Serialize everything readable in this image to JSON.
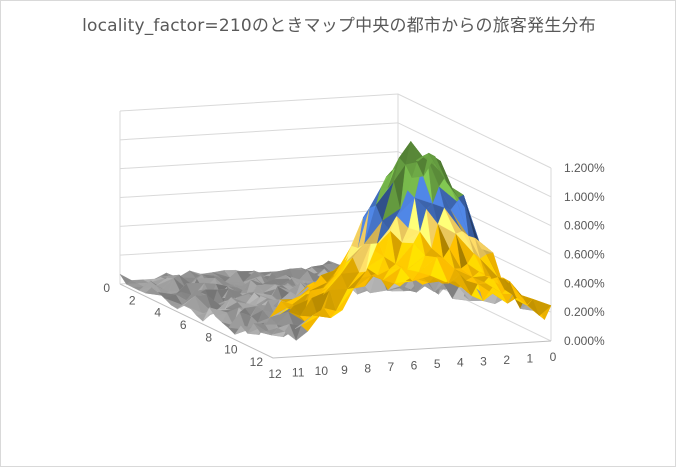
{
  "chart_data": {
    "type": "surface",
    "title": "locality_factor=210のときマップ中央の都市からの旅客発生分布",
    "z_axis": {
      "ticks": [
        "0.000%",
        "0.200%",
        "0.400%",
        "0.600%",
        "0.800%",
        "1.000%",
        "1.200%"
      ],
      "range": [
        0,
        1.2
      ]
    },
    "left_axis": {
      "ticks": [
        "0",
        "2",
        "4",
        "6",
        "8",
        "10",
        "12"
      ]
    },
    "right_axis": {
      "ticks": [
        "0",
        "1",
        "2",
        "3",
        "4",
        "5",
        "6",
        "7",
        "8",
        "9",
        "10",
        "11",
        "12"
      ]
    },
    "bands": [
      {
        "range": [
          0,
          0.2
        ],
        "color": "#a5a5a5"
      },
      {
        "range": [
          0.2,
          0.4
        ],
        "color": "#ffc000"
      },
      {
        "range": [
          0.4,
          0.6
        ],
        "color": "#ffc000"
      },
      {
        "range": [
          0.6,
          0.8
        ],
        "color": "#ffd966"
      },
      {
        "range": [
          0.8,
          1.0
        ],
        "color": "#4472c4"
      },
      {
        "range": [
          1.0,
          1.2
        ],
        "color": "#70ad47"
      }
    ],
    "grid": true,
    "legend": "none"
  }
}
